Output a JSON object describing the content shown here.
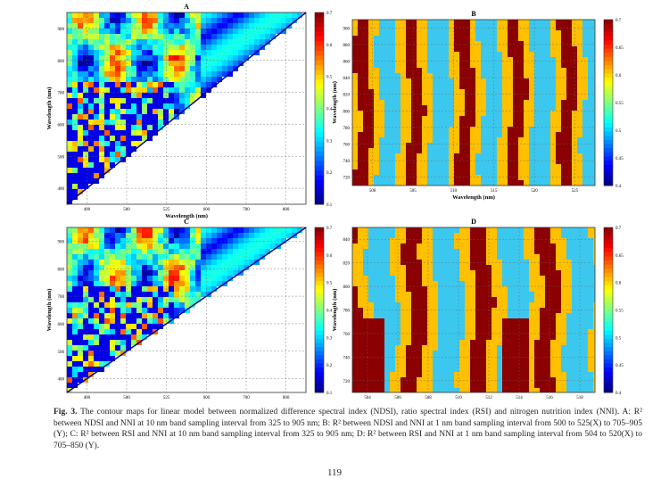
{
  "figure": {
    "panels": [
      {
        "label": "A",
        "x_label": "Wavelength (nm)",
        "y_label": "Wavelength (nm)",
        "x_ticks": [
          "400",
          "500",
          "525",
          "600",
          "700",
          "800"
        ],
        "y_ticks": [
          "900",
          "800",
          "700",
          "600",
          "500",
          "400"
        ],
        "colorbar_ticks": [
          "0.7",
          "0.6",
          "0.5",
          "0.4",
          "0.3",
          "0.2",
          "0.1"
        ]
      },
      {
        "label": "B",
        "x_label": "Wavelength (nm)",
        "y_label": "Wavelength (nm)",
        "x_ticks": [
          "500",
          "505",
          "510",
          "515",
          "520",
          "525"
        ],
        "y_ticks": [
          "900",
          "880",
          "860",
          "840",
          "820",
          "800",
          "780",
          "760",
          "740",
          "720"
        ],
        "colorbar_ticks": [
          "0.7",
          "0.65",
          "0.6",
          "0.55",
          "0.5",
          "0.45",
          "0.4"
        ]
      },
      {
        "label": "C",
        "x_label": "Wavelength (nm)",
        "y_label": "Wavelength (nm)",
        "x_ticks": [
          "400",
          "500",
          "525",
          "600",
          "700",
          "800"
        ],
        "y_ticks": [
          "900",
          "800",
          "700",
          "600",
          "500",
          "400"
        ],
        "colorbar_ticks": [
          "0.7",
          "0.6",
          "0.5",
          "0.4",
          "0.3",
          "0.2",
          "0.1"
        ]
      },
      {
        "label": "D",
        "x_label": "Wavelength (nm)",
        "y_label": "Wavelength (nm)",
        "x_ticks": [
          "504",
          "506",
          "508",
          "510",
          "512",
          "514",
          "516",
          "518"
        ],
        "y_ticks": [
          "840",
          "820",
          "800",
          "780",
          "760",
          "740",
          "720"
        ],
        "colorbar_ticks": [
          "0.7",
          "0.65",
          "0.6",
          "0.55",
          "0.5",
          "0.45",
          "0.4"
        ]
      }
    ]
  },
  "caption": {
    "label": "Fig. 3.",
    "text": "The contour maps for linear model between normalized difference spectral index (NDSI), ratio spectral index (RSI) and nitrogen nutrition index (NNI). A: R² between NDSI and NNI at 10 nm band sampling interval from 325 to 905 nm; B: R² between NDSI and NNI at 1 nm band sampling interval from 500 to 525(X) to 705–905 (Y); C: R² between RSI and NNI at 10 nm band sampling interval from 325 to 905 nm; D: R² between RSI and NNI at 1 nm band sampling interval from 504 to 520(X) to 705–850 (Y)."
  },
  "page_number": "119"
}
